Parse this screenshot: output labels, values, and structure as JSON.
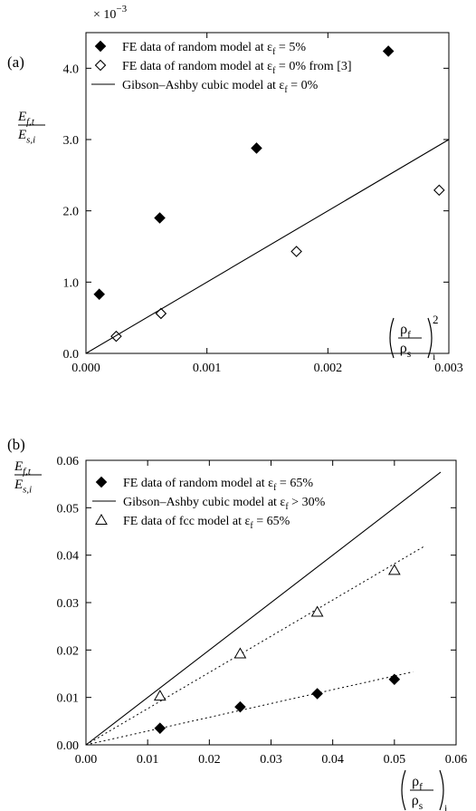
{
  "chart_data": [
    {
      "panel_label": "(a)",
      "type": "scatter",
      "scale_label": "× 10",
      "scale_exponent": "−3",
      "ylabel": {
        "num": "E",
        "num_sub": "f,t",
        "den": "E",
        "den_sub": "s,i"
      },
      "xlabel": {
        "num": "ρ",
        "num_sub": "f",
        "den": "ρ",
        "den_sub": "s",
        "outer_sub": "i",
        "power": "2"
      },
      "xlim": [
        0.0,
        0.003
      ],
      "ylim": [
        0.0,
        4.5
      ],
      "xticks": [
        "0.000",
        "0.001",
        "0.002",
        "0.003"
      ],
      "xtick_values": [
        0.0,
        0.001,
        0.002,
        0.003
      ],
      "yticks": [
        "0.0",
        "1.0",
        "2.0",
        "3.0",
        "4.0"
      ],
      "ytick_values": [
        0.0,
        1.0,
        2.0,
        3.0,
        4.0
      ],
      "series": [
        {
          "name": "FE data of random model at εf = 5%",
          "legend_main": "FE data of random model at ε",
          "legend_sub": "f",
          "legend_tail": " = 5%",
          "marker": "filled-diamond",
          "x": [
            0.00011,
            0.00061,
            0.00141,
            0.0025
          ],
          "y": [
            0.83,
            1.9,
            2.88,
            4.24
          ]
        },
        {
          "name": "FE data of random model at εf = 0% from [3]",
          "legend_main": "FE data of random model at ε",
          "legend_sub": "f",
          "legend_tail": " = 0% from [3]",
          "marker": "open-diamond",
          "x": [
            0.00025,
            0.00062,
            0.00174,
            0.00292
          ],
          "y": [
            0.24,
            0.56,
            1.43,
            2.29
          ]
        },
        {
          "name": "Gibson–Ashby cubic model at εf = 0%",
          "legend_main": "Gibson–Ashby cubic model at ε",
          "legend_sub": "f",
          "legend_tail": " = 0%",
          "marker": "solid-line",
          "x": [
            0.0,
            0.003
          ],
          "y": [
            0.0,
            3.0
          ]
        }
      ]
    },
    {
      "panel_label": "(b)",
      "type": "scatter",
      "ylabel": {
        "num": "E",
        "num_sub": "f,t",
        "den": "E",
        "den_sub": "s,i"
      },
      "xlabel": {
        "num": "ρ",
        "num_sub": "f",
        "den": "ρ",
        "den_sub": "s",
        "outer_sub": "i",
        "power": ""
      },
      "xlim": [
        0.0,
        0.06
      ],
      "ylim": [
        0.0,
        0.06
      ],
      "xticks": [
        "0.00",
        "0.01",
        "0.02",
        "0.03",
        "0.04",
        "0.05",
        "0.06"
      ],
      "xtick_values": [
        0.0,
        0.01,
        0.02,
        0.03,
        0.04,
        0.05,
        0.06
      ],
      "yticks": [
        "0.00",
        "0.01",
        "0.02",
        "0.03",
        "0.04",
        "0.05",
        "0.06"
      ],
      "ytick_values": [
        0.0,
        0.01,
        0.02,
        0.03,
        0.04,
        0.05,
        0.06
      ],
      "series": [
        {
          "name": "FE data of random model at εf = 65%",
          "legend_main": "FE data of random model at ε",
          "legend_sub": "f",
          "legend_tail": " = 65%",
          "marker": "filled-diamond",
          "x": [
            0.012,
            0.025,
            0.0375,
            0.05
          ],
          "y": [
            0.0035,
            0.008,
            0.0108,
            0.0138
          ]
        },
        {
          "name": "Gibson–Ashby cubic model at εf > 30%",
          "legend_main": "Gibson–Ashby cubic model at ε",
          "legend_sub": "f",
          "legend_tail": " > 30%",
          "marker": "solid-line",
          "x": [
            0.0,
            0.0575
          ],
          "y": [
            0.0,
            0.0575
          ]
        },
        {
          "name": "FE data of fcc model at εf = 65%",
          "legend_main": "FE data of fcc model at ε",
          "legend_sub": "f",
          "legend_tail": " = 65%",
          "marker": "open-triangle",
          "x": [
            0.012,
            0.025,
            0.0375,
            0.05
          ],
          "y": [
            0.0103,
            0.0192,
            0.028,
            0.0368
          ]
        }
      ],
      "fit_lines": [
        {
          "style": "dotted",
          "x": [
            0.0,
            0.053
          ],
          "y": [
            0.0,
            0.0154
          ]
        },
        {
          "style": "dotted",
          "x": [
            0.0,
            0.055
          ],
          "y": [
            0.0,
            0.042
          ]
        }
      ]
    }
  ]
}
